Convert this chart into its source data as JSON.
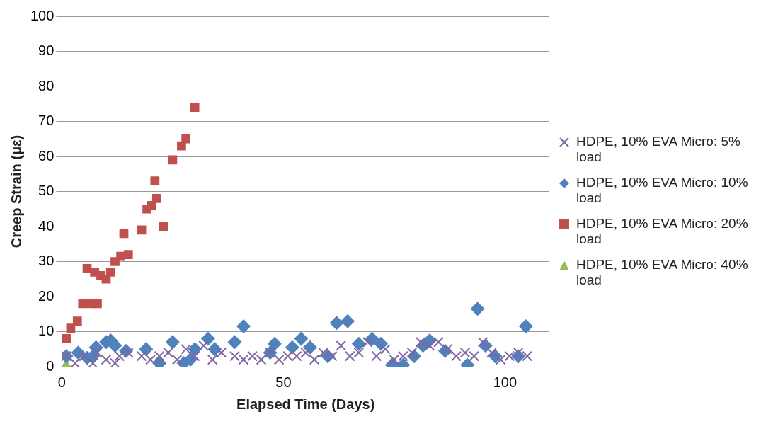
{
  "chart_data": {
    "type": "scatter",
    "xlabel": "Elapsed Time (Days)",
    "ylabel": "Creep Strain (με)",
    "xlim": [
      0,
      110
    ],
    "xticks": [
      0,
      50,
      100
    ],
    "ylim": [
      0,
      100
    ],
    "yticks": [
      0,
      10,
      20,
      30,
      40,
      50,
      60,
      70,
      80,
      90,
      100
    ],
    "grid": "y",
    "legend": "right",
    "series": [
      {
        "name": "HDPE, 10% EVA Micro: 5% load",
        "color": "#8064a2",
        "marker": "cross",
        "x": [
          1,
          3,
          5,
          7,
          8,
          10,
          12,
          13,
          15,
          18,
          20,
          22,
          24,
          26,
          28,
          30,
          32,
          34,
          36,
          39,
          41,
          43,
          45,
          47,
          49,
          51,
          53,
          55,
          57,
          59,
          61,
          63,
          65,
          67,
          69,
          71,
          73,
          75,
          77,
          79,
          81,
          83,
          85,
          87,
          89,
          91,
          93,
          95,
          97,
          99,
          101,
          103,
          105
        ],
        "values": [
          3,
          1,
          3,
          1,
          4,
          2,
          1,
          3,
          4,
          3,
          2,
          3,
          4,
          2,
          5,
          3,
          6,
          2,
          4,
          3,
          2,
          3,
          2,
          4,
          2,
          3,
          3,
          4,
          2,
          4,
          3,
          6,
          3,
          4,
          7,
          3,
          5,
          2,
          3,
          4,
          7,
          6,
          7,
          5,
          3,
          4,
          3,
          7,
          4,
          2,
          3,
          4,
          3
        ]
      },
      {
        "name": "HDPE, 10% EVA Micro: 10% load",
        "color": "#4f81bd",
        "marker": "diamond",
        "x": [
          1,
          3.7,
          5.7,
          7,
          7.7,
          10,
          11,
          12,
          14.5,
          19,
          22,
          25,
          27.5,
          29,
          30,
          33,
          34.5,
          39,
          41,
          47,
          48,
          52,
          54,
          56,
          60,
          62,
          64.5,
          67,
          70,
          72,
          74.5,
          77,
          79.5,
          81.5,
          83,
          86.5,
          91.5,
          93.8,
          95.6,
          97.8,
          103,
          104.7
        ],
        "values": [
          3,
          4,
          2.5,
          3,
          5.5,
          7,
          7.5,
          6,
          4.5,
          5,
          1,
          7,
          1,
          2,
          5,
          8,
          5,
          7,
          11.5,
          4,
          6.5,
          5.5,
          8,
          5.5,
          3,
          12.5,
          13,
          6.5,
          8,
          6.5,
          0.5,
          0.5,
          3,
          6,
          7.5,
          4.5,
          0.5,
          16.5,
          6,
          3,
          3,
          11.5
        ]
      },
      {
        "name": "HDPE, 10% EVA Micro: 20% load",
        "color": "#c0504d",
        "marker": "square",
        "x": [
          1,
          2,
          3.5,
          4.7,
          6.6,
          8,
          5.7,
          7.4,
          8.8,
          10,
          11,
          12,
          13.3,
          15,
          14,
          18,
          19.2,
          20.2,
          21.4,
          21,
          23,
          25,
          27,
          28,
          30
        ],
        "values": [
          8,
          11,
          13,
          18,
          18,
          18,
          28,
          27,
          26,
          25,
          27,
          30,
          31.5,
          32,
          38,
          39,
          45,
          46,
          48,
          53,
          40,
          59,
          63,
          65,
          74
        ]
      },
      {
        "name": "HDPE, 10% EVA Micro: 40% load",
        "color": "#9bbb59",
        "marker": "triangle",
        "x": [
          1
        ],
        "values": [
          0.5
        ]
      }
    ]
  }
}
